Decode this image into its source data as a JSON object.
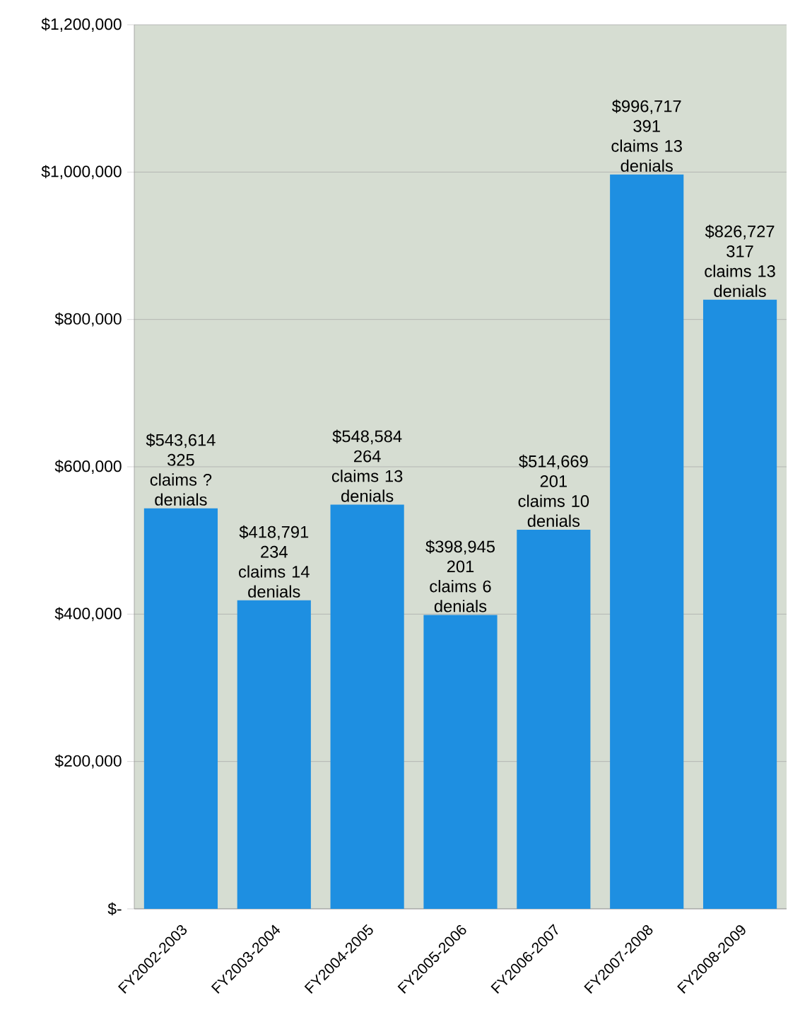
{
  "chart_data": {
    "type": "bar",
    "categories": [
      "FY2002-2003",
      "FY2003-2004",
      "FY2004-2005",
      "FY2005-2006",
      "FY2006-2007",
      "FY2007-2008",
      "FY2008-2009"
    ],
    "values": [
      543614,
      418791,
      548584,
      398945,
      514669,
      996717,
      826727
    ],
    "value_labels": [
      "$543,614 325 claims ? denials",
      "$418,791 234 claims 14 denials",
      "$548,584 264 claims 13 denials",
      "$398,945 201 claims 6 denials",
      "$514,669 201 claims 10 denials",
      "$996,717 391 claims 13 denials",
      "$826,727 317 claims 13 denials"
    ],
    "color": "#1e8fe1",
    "ylim": [
      0,
      1200000
    ],
    "yticks": [
      {
        "value": 0,
        "label": "$-"
      },
      {
        "value": 200000,
        "label": "$200,000"
      },
      {
        "value": 400000,
        "label": "$400,000"
      },
      {
        "value": 600000,
        "label": "$600,000"
      },
      {
        "value": 800000,
        "label": "$800,000"
      },
      {
        "value": 1000000,
        "label": "$1,000,000"
      },
      {
        "value": 1200000,
        "label": "$1,200,000"
      }
    ],
    "grid": "y"
  }
}
